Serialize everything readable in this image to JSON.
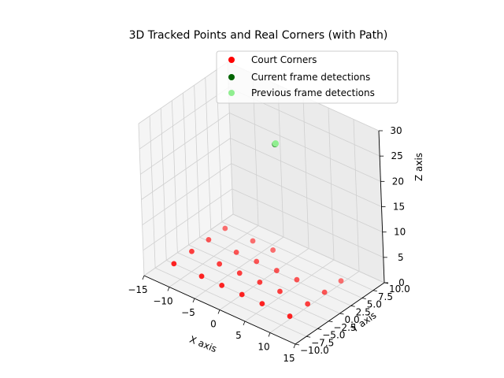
{
  "chart_data": {
    "type": "scatter",
    "projection": "3d",
    "title": "3D Tracked Points and Real Corners (with Path)",
    "xlabel": "X axis",
    "ylabel": "Y axis",
    "zlabel": "Z axis",
    "xlim": [
      -15,
      15
    ],
    "ylim": [
      -10,
      10
    ],
    "zlim": [
      0,
      30
    ],
    "xticks": [
      "−15",
      "−10",
      "−5",
      "0",
      "5",
      "10",
      "15"
    ],
    "yticks": [
      "−10.0",
      "−7.5",
      "−5.0",
      "−2.5",
      "0.0",
      "2.5",
      "5.0",
      "7.5",
      "10.0"
    ],
    "zticks": [
      "0",
      "5",
      "10",
      "15",
      "20",
      "25",
      "30"
    ],
    "grid": true,
    "legend_position": "top-right",
    "colors": {
      "corners": "#ff0000",
      "current": "#006400",
      "previous": "#90ee90"
    },
    "series": [
      {
        "name": "Court Corners",
        "points": [
          {
            "x": -13.5,
            "y": -5.0,
            "z": 0
          },
          {
            "x": -13.5,
            "y": -1.0,
            "z": 0
          },
          {
            "x": -13.5,
            "y": 2.8,
            "z": 0
          },
          {
            "x": -13.5,
            "y": 6.5,
            "z": 0
          },
          {
            "x": -8.0,
            "y": -5.0,
            "z": 0
          },
          {
            "x": -8.0,
            "y": -1.0,
            "z": 0
          },
          {
            "x": -8.0,
            "y": 2.8,
            "z": 0
          },
          {
            "x": -8.0,
            "y": 6.5,
            "z": 0
          },
          {
            "x": -4.0,
            "y": -5.0,
            "z": 0
          },
          {
            "x": -4.0,
            "y": -1.0,
            "z": 0
          },
          {
            "x": -4.0,
            "y": 2.8,
            "z": 0
          },
          {
            "x": -4.0,
            "y": 6.5,
            "z": 0
          },
          {
            "x": 0.0,
            "y": -5.0,
            "z": 0
          },
          {
            "x": 0.0,
            "y": -1.0,
            "z": 0
          },
          {
            "x": 0.0,
            "y": 2.8,
            "z": 0
          },
          {
            "x": 4.0,
            "y": -5.0,
            "z": 0
          },
          {
            "x": 4.0,
            "y": -1.0,
            "z": 0
          },
          {
            "x": 4.0,
            "y": 2.8,
            "z": 0
          },
          {
            "x": 9.5,
            "y": -5.0,
            "z": 0
          },
          {
            "x": 9.5,
            "y": -1.0,
            "z": 0
          },
          {
            "x": 9.5,
            "y": 2.8,
            "z": 0
          },
          {
            "x": 9.5,
            "y": 6.5,
            "z": 0
          }
        ]
      },
      {
        "name": "Current frame detections",
        "points": [
          {
            "x": -0.5,
            "y": 4.0,
            "z": 24.0
          }
        ]
      },
      {
        "name": "Previous frame detections",
        "points": [
          {
            "x": -0.45,
            "y": 4.05,
            "z": 24.1
          }
        ]
      }
    ]
  }
}
